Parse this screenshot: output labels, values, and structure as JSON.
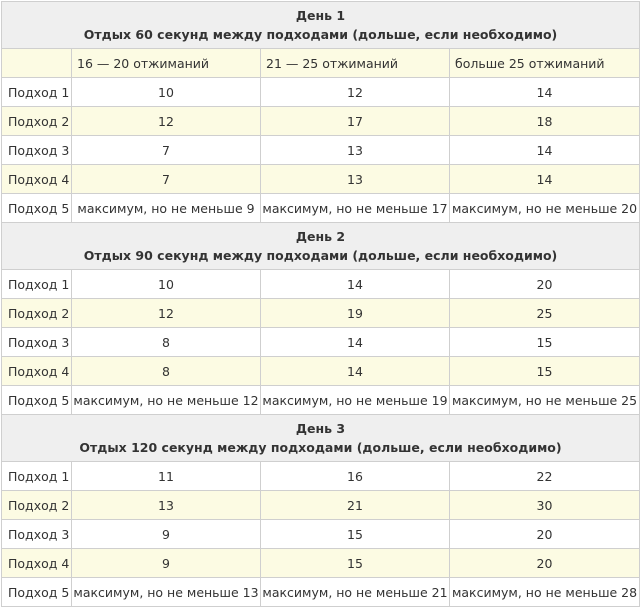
{
  "days": [
    {
      "title": "День 1",
      "rest": "Отдых 60 секунд между подходами (дольше, если необходимо)",
      "rows": [
        {
          "label": "Подход 1",
          "values": [
            "10",
            "12",
            "14"
          ]
        },
        {
          "label": "Подход 2",
          "values": [
            "12",
            "17",
            "18"
          ]
        },
        {
          "label": "Подход 3",
          "values": [
            "7",
            "13",
            "14"
          ]
        },
        {
          "label": "Подход 4",
          "values": [
            "7",
            "13",
            "14"
          ]
        },
        {
          "label": "Подход 5",
          "values": [
            "максимум, но не меньше 9",
            "максимум, но не меньше 17",
            "максимум, но не меньше 20"
          ]
        }
      ]
    },
    {
      "title": "День 2",
      "rest": "Отдых 90 секунд между подходами (дольше, если необходимо)",
      "rows": [
        {
          "label": "Подход 1",
          "values": [
            "10",
            "14",
            "20"
          ]
        },
        {
          "label": "Подход 2",
          "values": [
            "12",
            "19",
            "25"
          ]
        },
        {
          "label": "Подход 3",
          "values": [
            "8",
            "14",
            "15"
          ]
        },
        {
          "label": "Подход 4",
          "values": [
            "8",
            "14",
            "15"
          ]
        },
        {
          "label": "Подход 5",
          "values": [
            "максимум, но не меньше 12",
            "максимум, но не меньше 19",
            "максимум, но не меньше 25"
          ]
        }
      ]
    },
    {
      "title": "День 3",
      "rest": "Отдых 120 секунд между подходами (дольше, если необходимо)",
      "rows": [
        {
          "label": "Подход 1",
          "values": [
            "11",
            "16",
            "22"
          ]
        },
        {
          "label": "Подход 2",
          "values": [
            "13",
            "21",
            "30"
          ]
        },
        {
          "label": "Подход 3",
          "values": [
            "9",
            "15",
            "20"
          ]
        },
        {
          "label": "Подход 4",
          "values": [
            "9",
            "15",
            "20"
          ]
        },
        {
          "label": "Подход 5",
          "values": [
            "максимум, но не меньше 13",
            "максимум, но не меньше 21",
            "максимум, но не меньше 28"
          ]
        }
      ]
    }
  ],
  "columns": [
    "",
    "16 — 20 отжиманий",
    "21 — 25 отжиманий",
    "больше 25 отжиманий"
  ],
  "colors": {
    "header_bg": "#efefef",
    "highlight_row": "#fcfbe3",
    "border": "#cfcfcf",
    "text": "#333333"
  }
}
